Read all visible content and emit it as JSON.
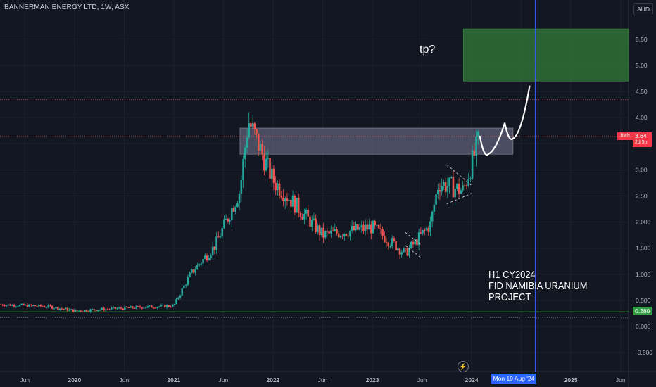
{
  "header": {
    "title": "BANNERMAN ENERGY LTD, 1W, ASX",
    "currency": "AUD"
  },
  "price_scale": {
    "labels": [
      "5.50",
      "5.00",
      "4.50",
      "4.00",
      "3.50",
      "3.00",
      "2.50",
      "2.000",
      "1.500",
      "1.000",
      "0.500",
      "0.000",
      "-0.500"
    ],
    "last_symbol": "BMN",
    "last_price": "3.64",
    "countdown": "2d 5h",
    "line_price": "0.280"
  },
  "time_scale": {
    "labels": [
      "Jun",
      "2020",
      "Jun",
      "2021",
      "Jun",
      "2022",
      "Jun",
      "2023",
      "Jun",
      "2024",
      "Jun",
      "2025",
      "Jun"
    ],
    "cursor_date": "Mon 19 Aug '24"
  },
  "annotations": {
    "target_text": "tp?",
    "note_lines": [
      "H1 CY2024",
      "FID NAMIBIA URANIUM",
      "PROJECT"
    ]
  },
  "colors": {
    "background": "#131722",
    "up": "#26a69a",
    "down": "#ef5350",
    "grid": "#1e222d",
    "target_zone": "#2e6b34",
    "resistance_zone": "#5d5f78",
    "support_line": "#4caf50",
    "cursor_line": "#2962ff"
  },
  "chart_data": {
    "type": "candlestick",
    "title": "BANNERMAN ENERGY LTD, 1W, ASX",
    "ylim": [
      -0.6,
      6.0
    ],
    "x_range": [
      "2019-04",
      "2025-07"
    ],
    "key_levels": {
      "support": 0.28,
      "dashed_high": 4.35,
      "dashed_low": 0.17,
      "last": 3.64
    },
    "zones": [
      {
        "label": "resistance",
        "y_low": 3.3,
        "y_high": 3.8,
        "x_start": "2021-09",
        "x_end": "2024-06"
      },
      {
        "label": "tp?",
        "y_low": 4.7,
        "y_high": 5.7,
        "x_start": "2023-12",
        "x_end": "2025-09"
      }
    ],
    "path_keypoints": [
      {
        "x": "2020-01",
        "y": 0.3
      },
      {
        "x": "2021-01",
        "y": 0.4
      },
      {
        "x": "2021-03",
        "y": 1.0
      },
      {
        "x": "2021-06",
        "y": 1.55
      },
      {
        "x": "2021-09",
        "y": 2.6
      },
      {
        "x": "2021-10",
        "y": 3.95
      },
      {
        "x": "2022-01",
        "y": 2.8
      },
      {
        "x": "2022-07",
        "y": 1.75
      },
      {
        "x": "2023-01",
        "y": 1.9
      },
      {
        "x": "2023-05",
        "y": 1.4
      },
      {
        "x": "2023-08",
        "y": 1.95
      },
      {
        "x": "2023-09",
        "y": 2.75
      },
      {
        "x": "2023-12",
        "y": 2.6
      },
      {
        "x": "2024-02",
        "y": 3.64
      }
    ],
    "projection": [
      {
        "x": "2024-02",
        "y": 3.64
      },
      {
        "x": "2024-03",
        "y": 3.3
      },
      {
        "x": "2024-05",
        "y": 3.9
      },
      {
        "x": "2024-06",
        "y": 3.6
      },
      {
        "x": "2024-08",
        "y": 4.6
      }
    ]
  }
}
